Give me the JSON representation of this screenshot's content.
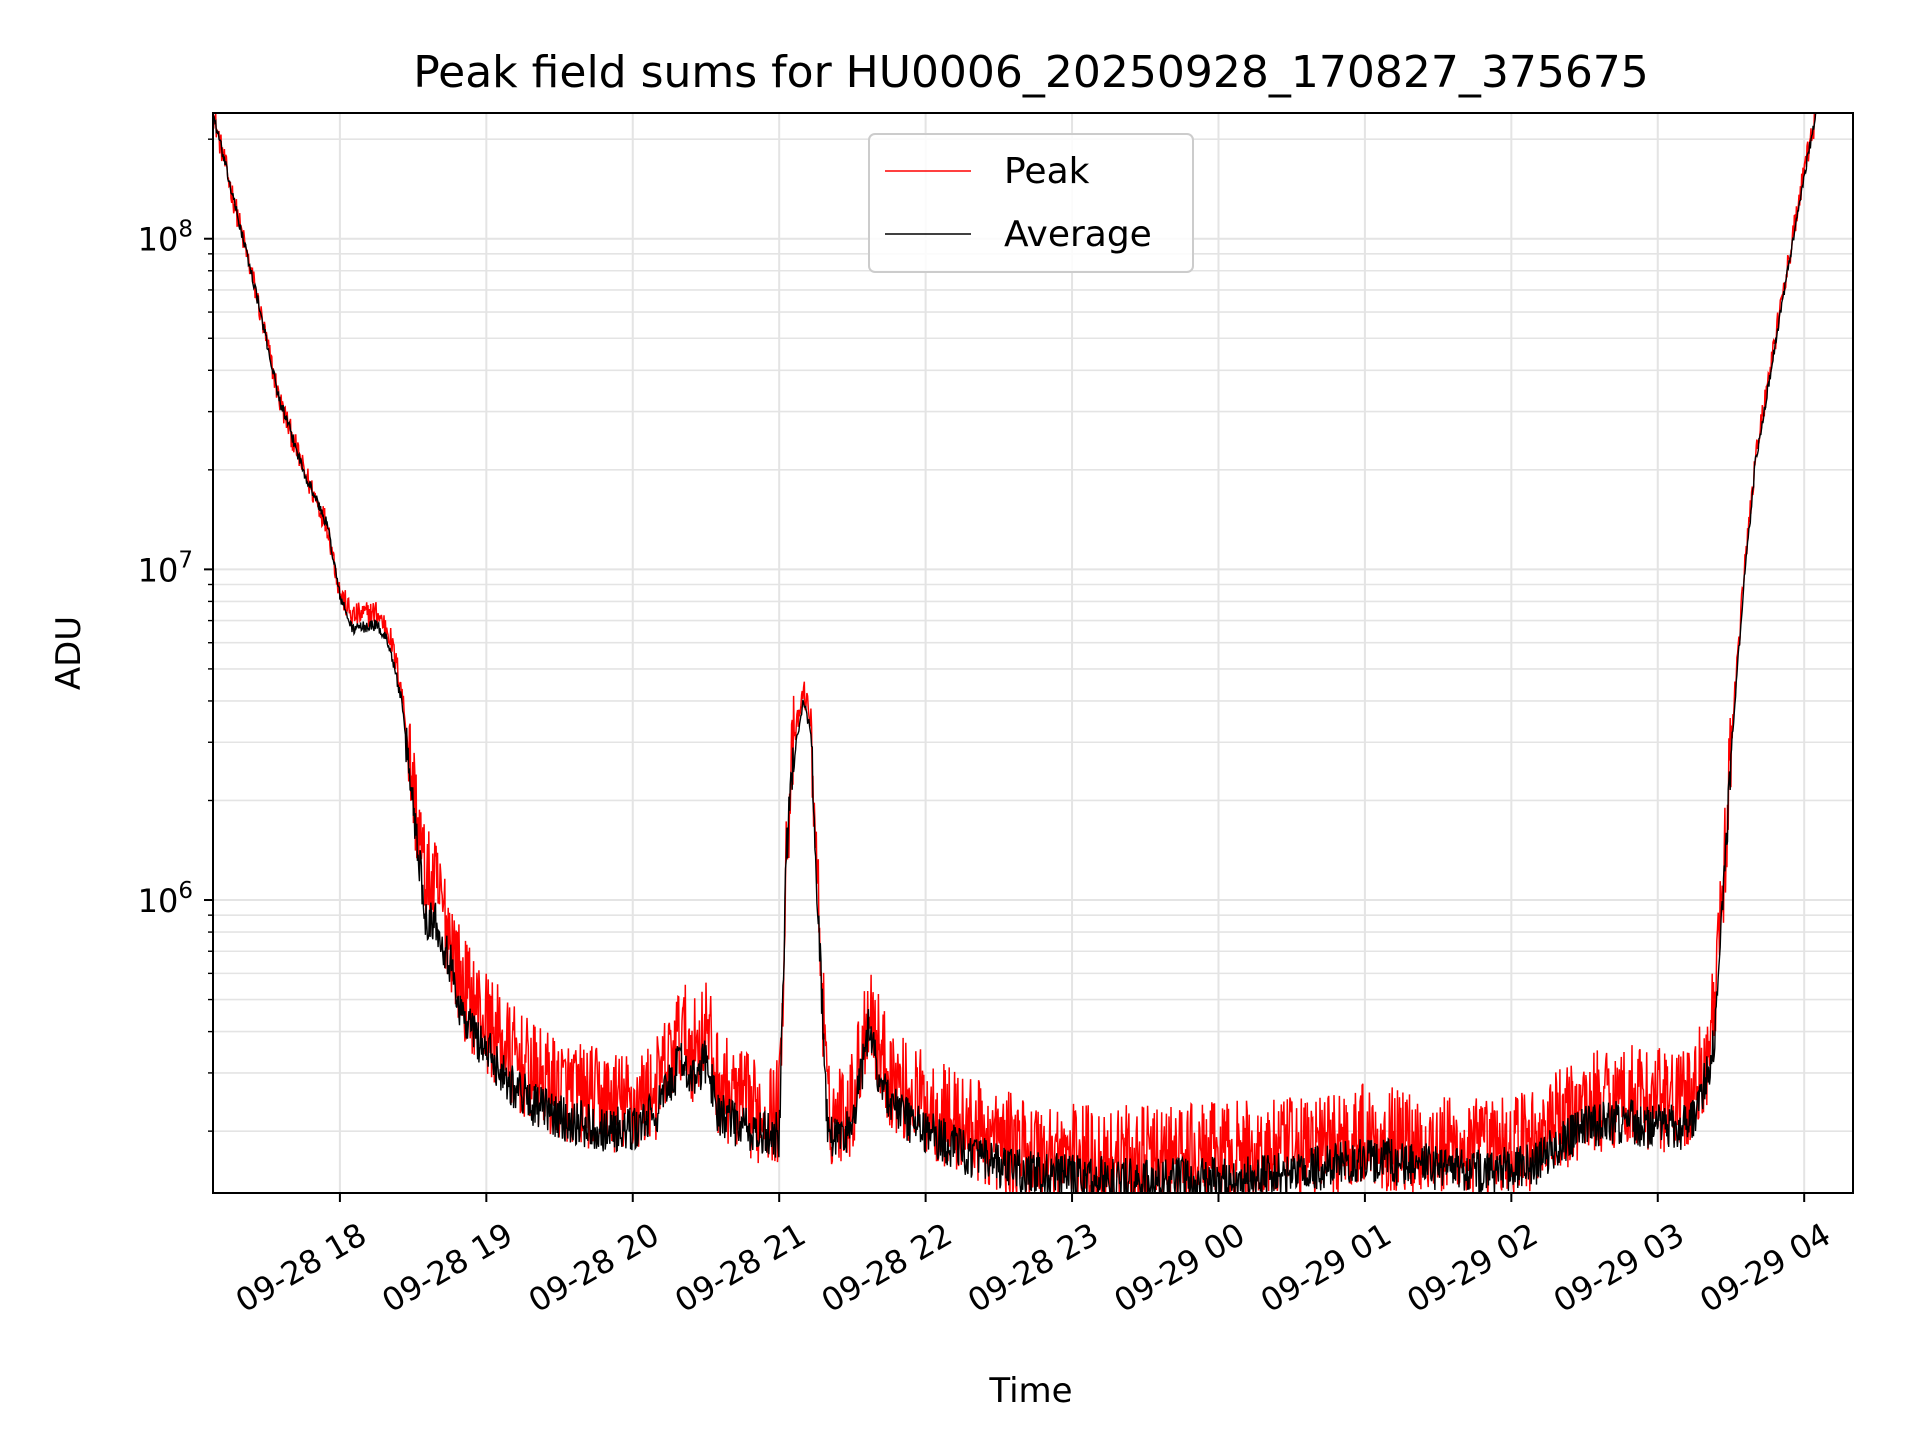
{
  "chart_data": {
    "type": "line",
    "title": "Peak field sums for HU0006_20250928_170827_375675",
    "xlabel": "Time",
    "ylabel": "ADU",
    "yscale": "log",
    "xlim": [
      "2025-09-28 17:08",
      "2025-09-29 04:20"
    ],
    "ylim": [
      130000,
      240000000
    ],
    "grid": "on (major and minor)",
    "legend_position": "top-center",
    "x_tick_labels": [
      "09-28 18",
      "09-28 19",
      "09-28 20",
      "09-28 21",
      "09-28 22",
      "09-28 23",
      "09-29 00",
      "09-29 01",
      "09-29 02",
      "09-29 03",
      "09-29 04"
    ],
    "y_tick_labels": [
      {
        "value": 1000000,
        "base": "10",
        "exp": "6"
      },
      {
        "value": 10000000,
        "base": "10",
        "exp": "7"
      },
      {
        "value": 100000000,
        "base": "10",
        "exp": "8"
      }
    ],
    "x": [
      "2025-09-28 17:08",
      "2025-09-28 17:15",
      "2025-09-28 17:25",
      "2025-09-28 17:35",
      "2025-09-28 17:45",
      "2025-09-28 17:55",
      "2025-09-28 18:00",
      "2025-09-28 18:05",
      "2025-09-28 18:10",
      "2025-09-28 18:15",
      "2025-09-28 18:20",
      "2025-09-28 18:25",
      "2025-09-28 18:30",
      "2025-09-28 18:35",
      "2025-09-28 18:40",
      "2025-09-28 18:45",
      "2025-09-28 18:50",
      "2025-09-28 19:00",
      "2025-09-28 19:10",
      "2025-09-28 19:20",
      "2025-09-28 19:30",
      "2025-09-28 19:45",
      "2025-09-28 20:00",
      "2025-09-28 20:10",
      "2025-09-28 20:20",
      "2025-09-28 20:25",
      "2025-09-28 20:30",
      "2025-09-28 20:35",
      "2025-09-28 20:40",
      "2025-09-28 20:50",
      "2025-09-28 21:00",
      "2025-09-28 21:03",
      "2025-09-28 21:06",
      "2025-09-28 21:10",
      "2025-09-28 21:13",
      "2025-09-28 21:16",
      "2025-09-28 21:20",
      "2025-09-28 21:25",
      "2025-09-28 21:30",
      "2025-09-28 21:37",
      "2025-09-28 21:40",
      "2025-09-28 21:45",
      "2025-09-28 21:50",
      "2025-09-28 22:00",
      "2025-09-28 22:15",
      "2025-09-28 22:30",
      "2025-09-28 22:45",
      "2025-09-28 23:00",
      "2025-09-28 23:30",
      "2025-09-29 00:00",
      "2025-09-29 00:30",
      "2025-09-29 01:00",
      "2025-09-29 01:30",
      "2025-09-29 01:50",
      "2025-09-29 02:10",
      "2025-09-29 02:30",
      "2025-09-29 02:45",
      "2025-09-29 03:00",
      "2025-09-29 03:10",
      "2025-09-29 03:15",
      "2025-09-29 03:20",
      "2025-09-29 03:23",
      "2025-09-29 03:25",
      "2025-09-29 03:28",
      "2025-09-29 03:30",
      "2025-09-29 03:35",
      "2025-09-29 03:40",
      "2025-09-29 03:50",
      "2025-09-29 04:00",
      "2025-09-29 04:05"
    ],
    "series": [
      {
        "name": "Peak",
        "color": "#ff0000",
        "noise": 0.16,
        "values": [
          240000000,
          145000000,
          72000000,
          33000000,
          20000000,
          13500000,
          8500000,
          7200000,
          7300000,
          7400000,
          6500000,
          4500000,
          2200000,
          1150000,
          1050000,
          800000,
          550000,
          430000,
          340000,
          290000,
          270000,
          250000,
          240000,
          270000,
          400000,
          350000,
          420000,
          280000,
          260000,
          230000,
          230000,
          1500000,
          3000000,
          4300000,
          3500000,
          1000000,
          220000,
          230000,
          245000,
          500000,
          380000,
          300000,
          270000,
          240000,
          210000,
          185000,
          175000,
          170000,
          165000,
          170000,
          175000,
          195000,
          180000,
          175000,
          190000,
          240000,
          260000,
          250000,
          245000,
          260000,
          340000,
          450000,
          700000,
          1500000,
          3000000,
          9000000,
          22000000,
          60000000,
          160000000,
          240000000
        ]
      },
      {
        "name": "Average",
        "color": "#000000",
        "noise": 0.07,
        "values": [
          240000000,
          145000000,
          72000000,
          33000000,
          20000000,
          13500000,
          8300000,
          6600000,
          6700000,
          6800000,
          6000000,
          4100000,
          1950000,
          900000,
          850000,
          650000,
          450000,
          350000,
          280000,
          240000,
          220000,
          205000,
          200000,
          230000,
          330000,
          280000,
          330000,
          230000,
          215000,
          195000,
          195000,
          1400000,
          2800000,
          4000000,
          3200000,
          900000,
          190000,
          195000,
          205000,
          420000,
          310000,
          250000,
          225000,
          200000,
          175000,
          155000,
          148000,
          145000,
          140000,
          143000,
          148000,
          165000,
          155000,
          150000,
          160000,
          205000,
          215000,
          205000,
          205000,
          220000,
          290000,
          380000,
          600000,
          1350000,
          2800000,
          8500000,
          21000000,
          58000000,
          155000000,
          240000000
        ]
      }
    ]
  }
}
